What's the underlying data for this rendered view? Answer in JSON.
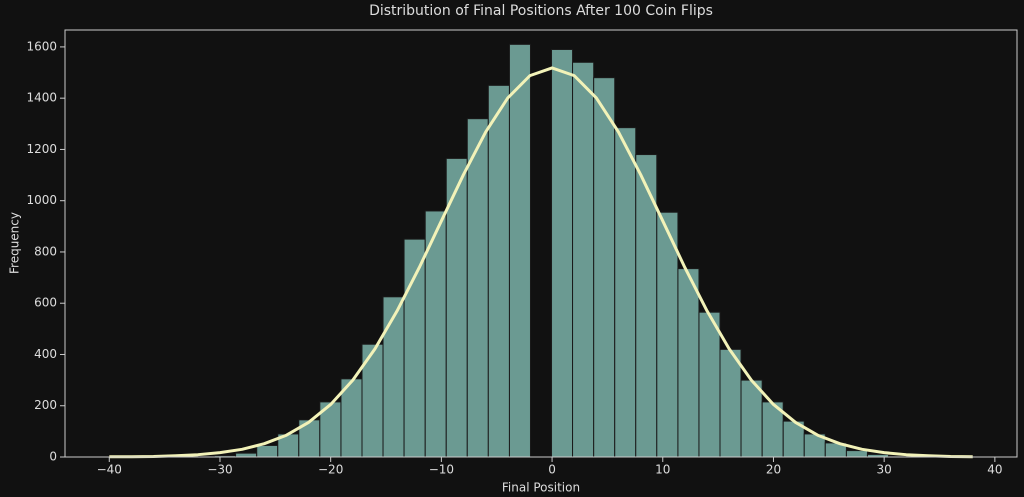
{
  "chart_data": {
    "type": "histogram",
    "title": "Distribution of Final Positions After 100 Coin Flips",
    "x_label": "Final Position",
    "y_label": "Frequency",
    "bins": [
      -40,
      -38.1,
      -36.2,
      -34.29,
      -32.39,
      -30.49,
      -28.59,
      -26.68,
      -24.78,
      -22.88,
      -20.98,
      -19.07,
      -17.17,
      -15.27,
      -13.37,
      -11.46,
      -9.56,
      -7.66,
      -5.76,
      -3.85,
      -1.95,
      -0.05,
      1.85,
      3.76,
      5.66,
      7.56,
      9.46,
      11.37,
      13.27,
      15.17,
      17.07,
      18.98,
      20.88,
      22.78,
      24.68,
      26.59,
      28.49,
      30.39,
      32.29,
      34.2,
      36.1,
      38
    ],
    "counts": [
      0,
      0,
      0,
      0,
      1,
      5,
      15,
      45,
      90,
      145,
      215,
      305,
      440,
      625,
      850,
      960,
      1165,
      1320,
      1450,
      1610,
      0,
      1590,
      1540,
      1480,
      1285,
      1180,
      955,
      735,
      565,
      420,
      300,
      215,
      140,
      90,
      55,
      25,
      10,
      3,
      0,
      0,
      0
    ],
    "color": "#6b9a92",
    "edge_color": "#1a1a1a",
    "curve": {
      "x": [
        -40,
        -38,
        -36,
        -34,
        -32,
        -30,
        -28,
        -26,
        -24,
        -22,
        -20,
        -18,
        -16,
        -14,
        -12,
        -10,
        -8,
        -6,
        -4,
        -2,
        0,
        2,
        4,
        6,
        8,
        10,
        12,
        14,
        16,
        18,
        20,
        22,
        24,
        26,
        28,
        30,
        32,
        34,
        36,
        38
      ],
      "values": [
        1,
        1,
        2,
        5,
        9,
        17,
        30,
        52,
        85,
        135,
        205,
        300,
        422,
        570,
        739,
        921,
        1102,
        1268,
        1401,
        1488,
        1518,
        1488,
        1401,
        1268,
        1102,
        921,
        739,
        570,
        422,
        300,
        205,
        135,
        85,
        52,
        30,
        17,
        9,
        5,
        2,
        1
      ],
      "color": "#f2f2b8"
    },
    "xlim": [
      -44,
      42
    ],
    "ylim": [
      0,
      1666
    ],
    "xticks": [
      {
        "value": -40,
        "label": "−40"
      },
      {
        "value": -30,
        "label": "−30"
      },
      {
        "value": -20,
        "label": "−20"
      },
      {
        "value": -10,
        "label": "−10"
      },
      0,
      10,
      20,
      30,
      40
    ],
    "yticks": [
      0,
      200,
      400,
      600,
      800,
      1000,
      1200,
      1400,
      1600
    ],
    "grid": false
  }
}
